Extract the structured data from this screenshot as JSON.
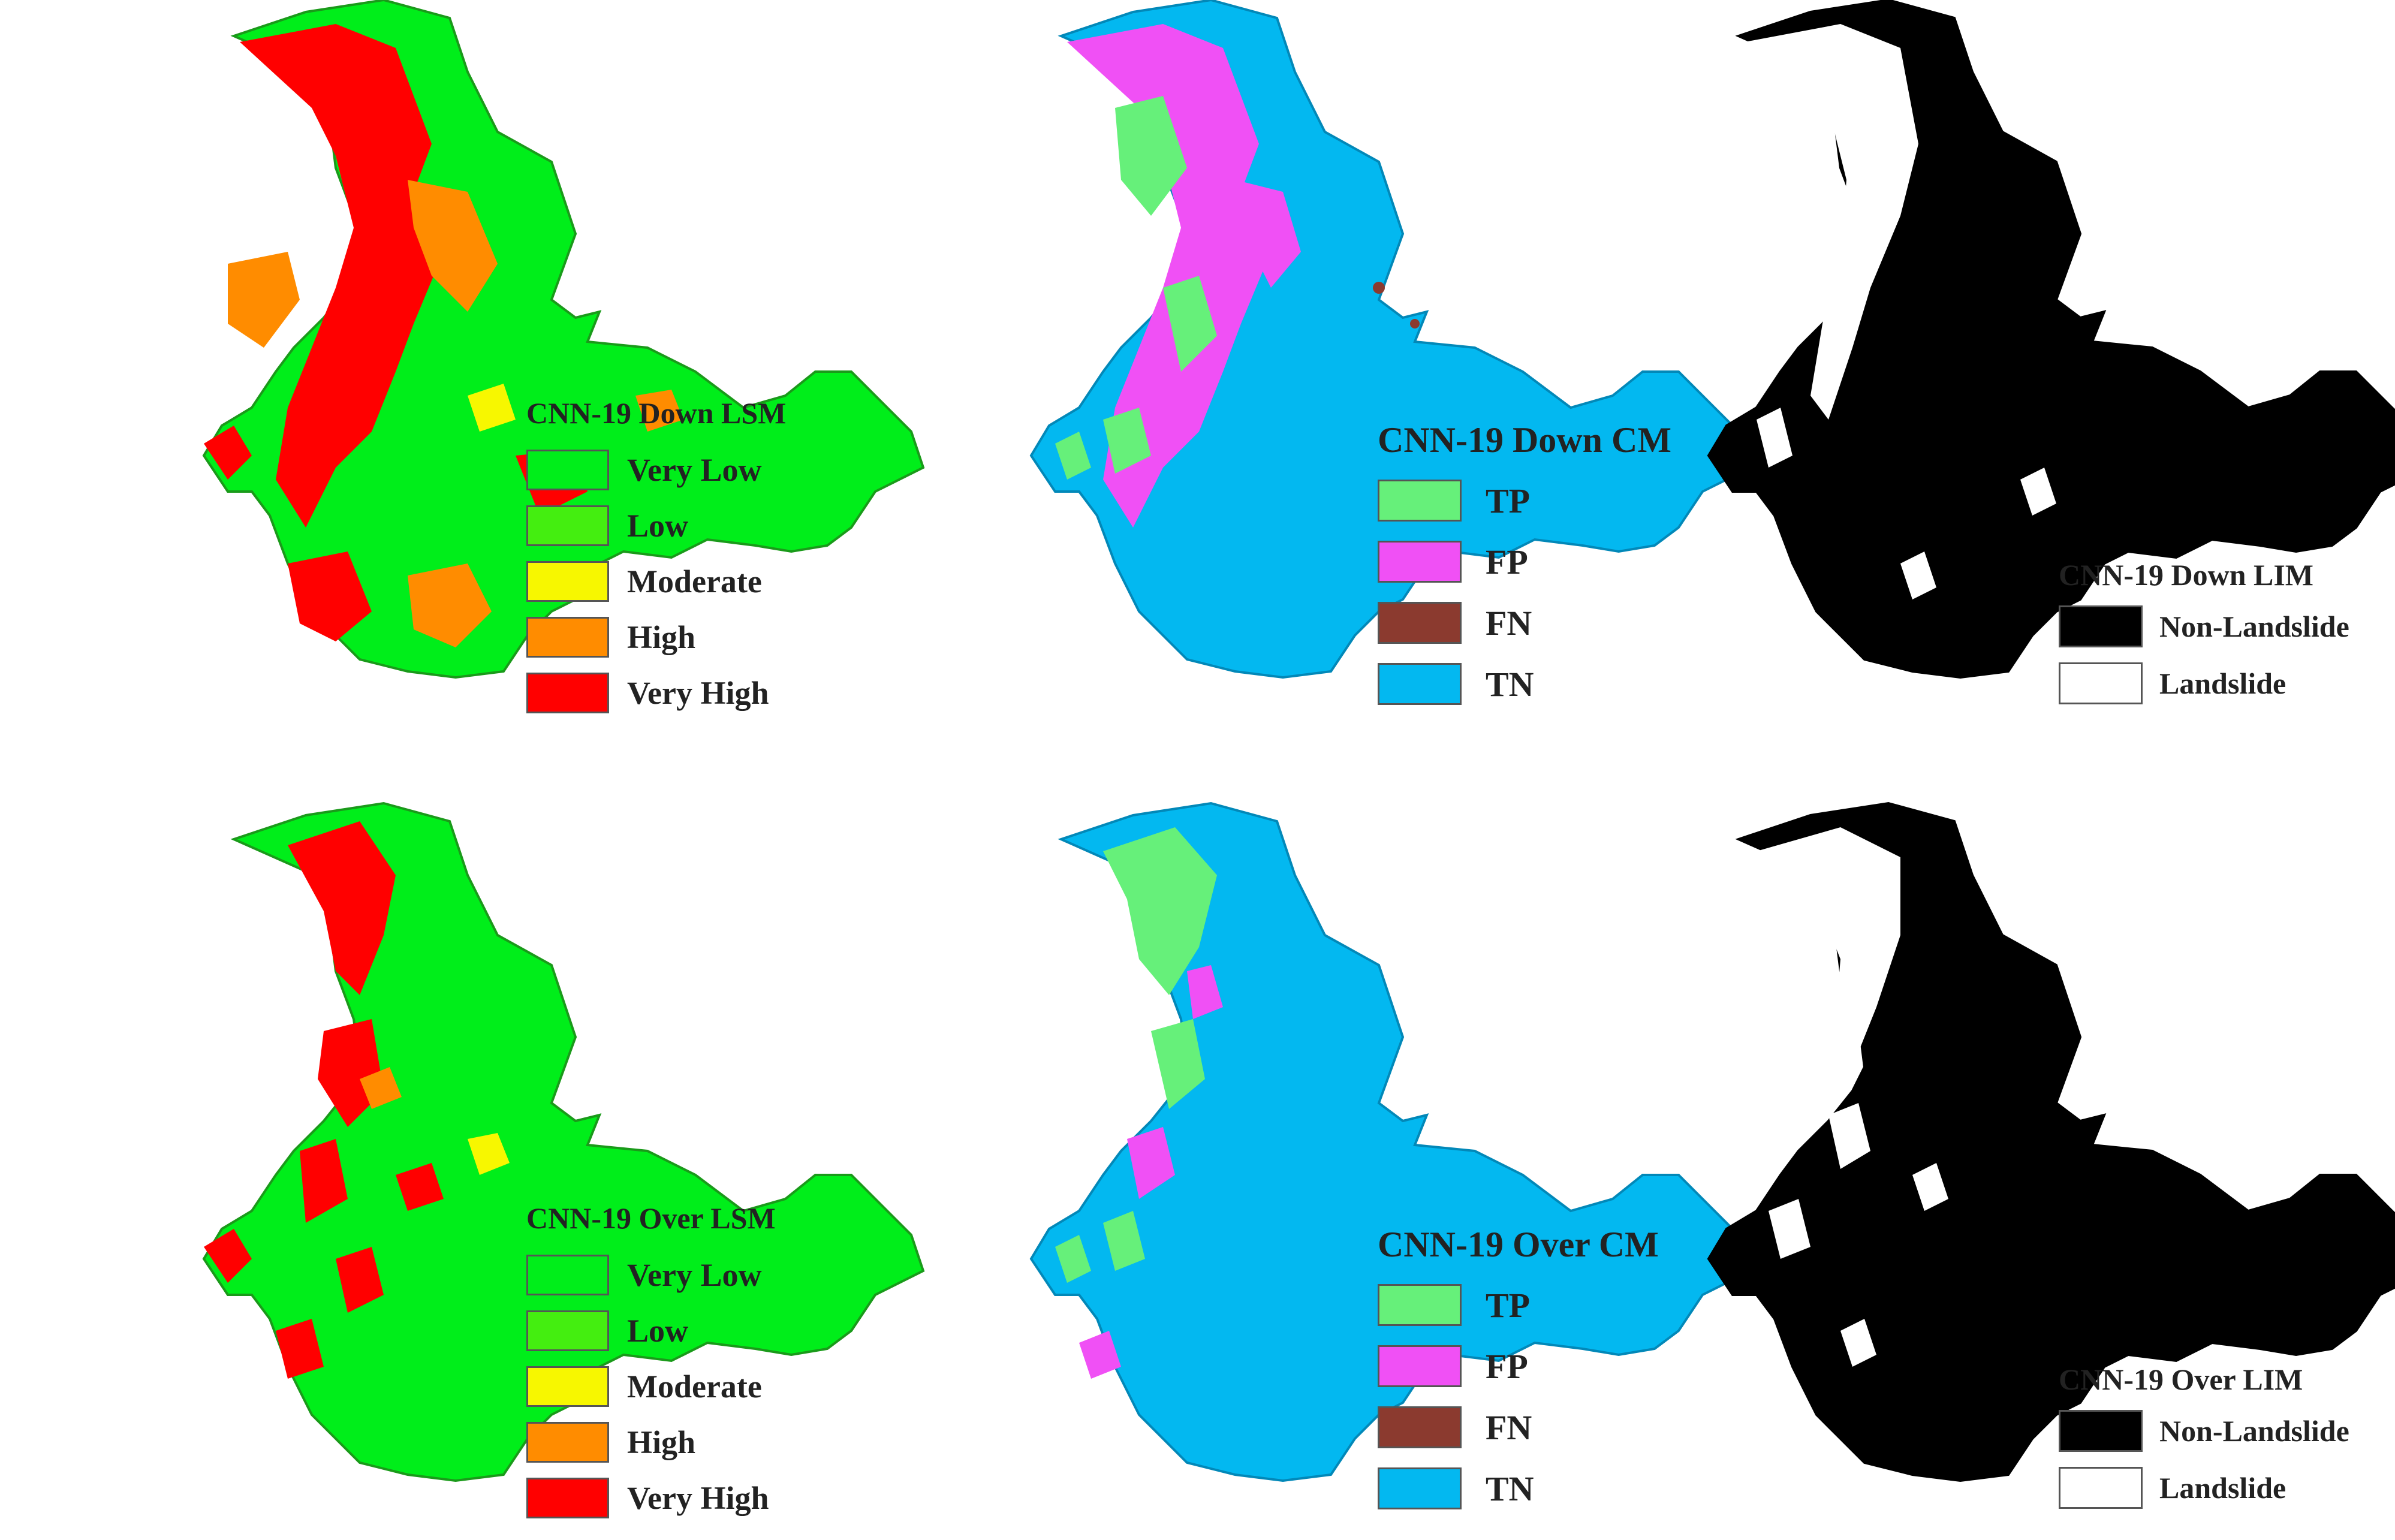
{
  "colors": {
    "lsm_very_low": "#00ee1a",
    "lsm_low": "#44ee10",
    "lsm_moderate": "#f7f700",
    "lsm_high": "#ff8c00",
    "lsm_very_high": "#ff0000",
    "cm_tp": "#66f07a",
    "cm_fp": "#f050f5",
    "cm_fn": "#8b3a2f",
    "cm_tn": "#03b8f0",
    "lim_non_landslide": "#000000",
    "lim_landslide": "#ffffff"
  },
  "panels": {
    "down_lsm": {
      "title": "CNN-19 Down LSM",
      "items": [
        "Very Low",
        "Low",
        "Moderate",
        "High",
        "Very High"
      ],
      "icons": [
        "swatch-very-low",
        "swatch-low",
        "swatch-moderate",
        "swatch-high",
        "swatch-very-high"
      ]
    },
    "down_cm": {
      "title": "CNN-19 Down CM",
      "items": [
        "TP",
        "FP",
        "FN",
        "TN"
      ]
    },
    "down_lim": {
      "title": "CNN-19 Down LIM",
      "items": [
        "Non-Landslide",
        "Landslide"
      ]
    },
    "over_lsm": {
      "title": "CNN-19 Over LSM",
      "items": [
        "Very Low",
        "Low",
        "Moderate",
        "High",
        "Very High"
      ]
    },
    "over_cm": {
      "title": "CNN-19 Over CM",
      "items": [
        "TP",
        "FP",
        "FN",
        "TN"
      ]
    },
    "over_lim": {
      "title": "CNN-19 Over LIM",
      "items": [
        "Non-Landslide",
        "Landslide"
      ]
    }
  }
}
